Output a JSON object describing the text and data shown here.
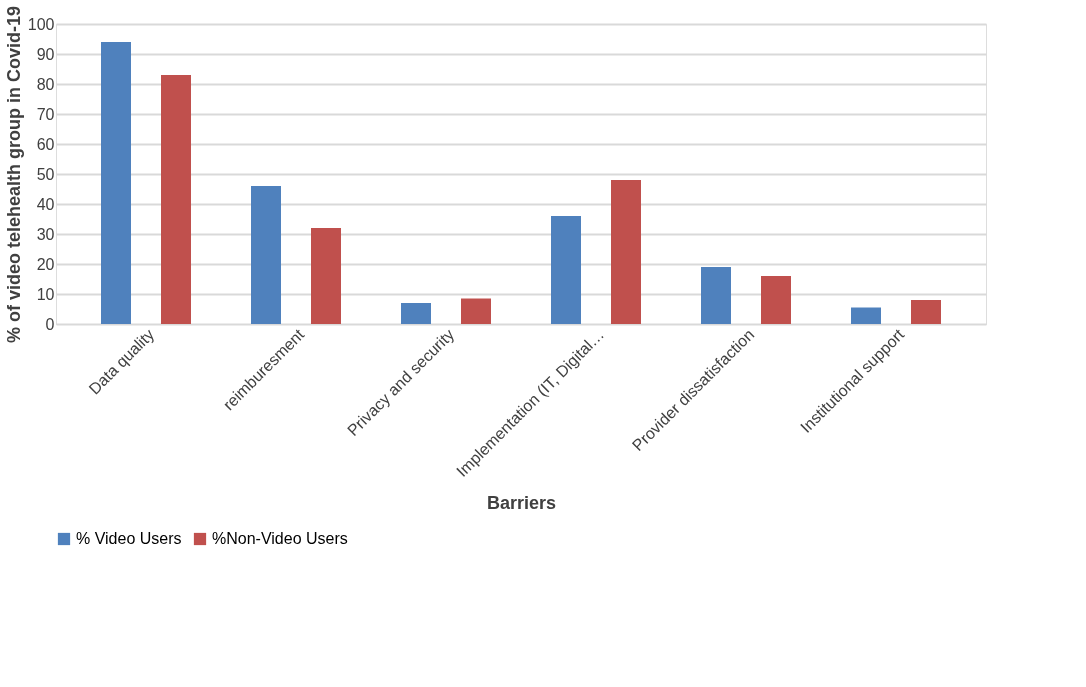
{
  "chart_data": {
    "type": "bar",
    "xlabel": "Barriers",
    "ylabel": "% of video telehealth group in Covid-19",
    "categories": [
      "Data quality",
      "reimburesment",
      "Privacy and security",
      "Implementation (IT, Digital…",
      "Provider dissatisfaction",
      "Institutional support"
    ],
    "series": [
      {
        "name": "% Video Users",
        "color": "#4f81bd",
        "values": [
          94,
          46,
          7,
          36,
          19,
          5.5
        ]
      },
      {
        "name": "%Non-Video Users",
        "color": "#c0504d",
        "values": [
          83,
          32,
          8.5,
          48,
          16,
          8
        ]
      }
    ],
    "ylim": [
      0,
      100
    ],
    "yticks": [
      0,
      10,
      20,
      30,
      40,
      50,
      60,
      70,
      80,
      90,
      100
    ],
    "grid": "y",
    "legend": "bottom"
  }
}
